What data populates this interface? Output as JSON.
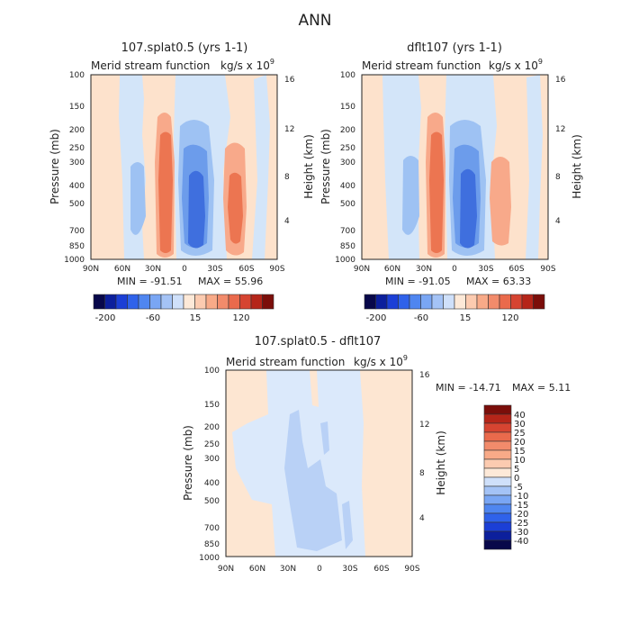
{
  "main_title": "ANN",
  "colors": {
    "positive_light": "#fde2cc",
    "positive_mid": "#f8a98a",
    "positive_strong": "#ec7551",
    "negative_light": "#d3e5f9",
    "negative_mid": "#9ec2f3",
    "negative_strong": "#6c9ceb",
    "negative_core": "#3f6fde",
    "diff_positive": "#fde6d2",
    "diff_negative_light": "#dbe9fb",
    "diff_negative_mid": "#b9d1f6"
  },
  "chart_data": [
    {
      "type": "heatmap",
      "title": "107.splat0.5 (yrs 1-1)",
      "subtitle_left": "Merid stream function",
      "units": "kg/s x 10",
      "units_exponent": "9",
      "ylabel": "Pressure (mb)",
      "y2label": "Height (km)",
      "x_ticks": [
        "90N",
        "60N",
        "30N",
        "0",
        "30S",
        "60S",
        "90S"
      ],
      "y_ticks": [
        "100",
        "150",
        "200",
        "250",
        "300",
        "400",
        "500",
        "700",
        "850",
        "1000"
      ],
      "y2_ticks": [
        "16",
        "12",
        "8",
        "4"
      ],
      "min_label": "MIN = -91.51",
      "max_label": "MAX = 55.96",
      "colorbar_labels": [
        "-200",
        "-60",
        "15",
        "120"
      ],
      "colorbar": [
        "#08084a",
        "#0c1f9c",
        "#1b3fd6",
        "#2f62ea",
        "#4f86f0",
        "#79a6f4",
        "#a4c3f6",
        "#cfe0fa",
        "#fde9d8",
        "#fccbb0",
        "#f8aa88",
        "#f28b6b",
        "#ea6a4c",
        "#d64431",
        "#b52519",
        "#7b0e0a"
      ]
    },
    {
      "type": "heatmap",
      "title": "dflt107 (yrs 1-1)",
      "subtitle_left": "Merid stream function",
      "units": "kg/s x 10",
      "units_exponent": "9",
      "ylabel": "Pressure (mb)",
      "y2label": "Height (km)",
      "x_ticks": [
        "90N",
        "60N",
        "30N",
        "0",
        "30S",
        "60S",
        "90S"
      ],
      "y_ticks": [
        "100",
        "150",
        "200",
        "250",
        "300",
        "400",
        "500",
        "700",
        "850",
        "1000"
      ],
      "y2_ticks": [
        "16",
        "12",
        "8",
        "4"
      ],
      "min_label": "MIN = -91.05",
      "max_label": "MAX = 63.33",
      "colorbar_labels": [
        "-200",
        "-60",
        "15",
        "120"
      ],
      "colorbar": [
        "#08084a",
        "#0c1f9c",
        "#1b3fd6",
        "#2f62ea",
        "#4f86f0",
        "#79a6f4",
        "#a4c3f6",
        "#cfe0fa",
        "#fde9d8",
        "#fccbb0",
        "#f8aa88",
        "#f28b6b",
        "#ea6a4c",
        "#d64431",
        "#b52519",
        "#7b0e0a"
      ]
    },
    {
      "type": "heatmap",
      "title": "107.splat0.5 - dflt107",
      "subtitle_left": "Merid stream function",
      "units": "kg/s x 10",
      "units_exponent": "9",
      "ylabel": "Pressure (mb)",
      "y2label": "Height (km)",
      "x_ticks": [
        "90N",
        "60N",
        "30N",
        "0",
        "30S",
        "60S",
        "90S"
      ],
      "y_ticks": [
        "100",
        "150",
        "200",
        "250",
        "300",
        "400",
        "500",
        "700",
        "850",
        "1000"
      ],
      "y2_ticks": [
        "16",
        "12",
        "8",
        "4"
      ],
      "min_label": "MIN = -14.71",
      "max_label": "MAX =   5.11",
      "colorbar_labels": [
        "40",
        "30",
        "25",
        "20",
        "15",
        "10",
        "5",
        "0",
        "-5",
        "-10",
        "-15",
        "-20",
        "-25",
        "-30",
        "-40"
      ],
      "colorbar": [
        "#7b0e0a",
        "#b52519",
        "#d64431",
        "#ea6a4c",
        "#f28b6b",
        "#f8aa88",
        "#fccbb0",
        "#fde9d8",
        "#cfe0fa",
        "#a4c3f6",
        "#79a6f4",
        "#4f86f0",
        "#2f62ea",
        "#1b3fd6",
        "#0c1f9c",
        "#08084a"
      ]
    }
  ]
}
